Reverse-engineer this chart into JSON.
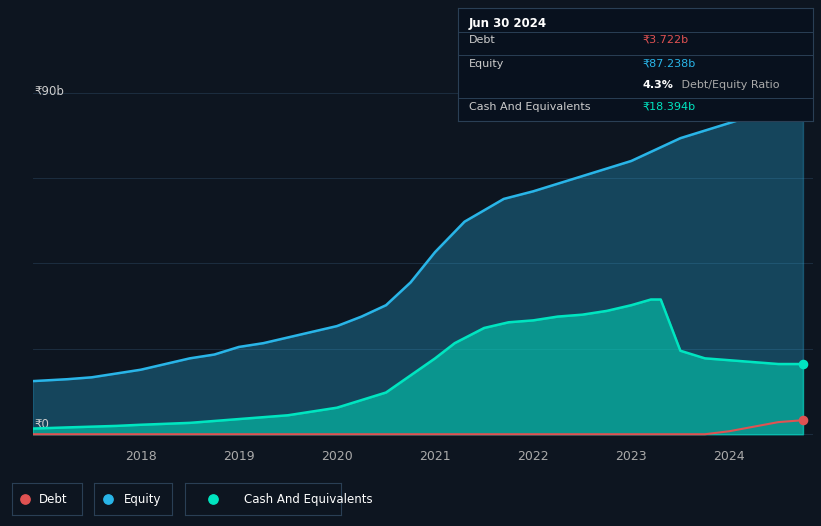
{
  "background_color": "#0d1520",
  "plot_bg_color": "#0d1520",
  "ylabel_top": "₹90b",
  "ylabel_bottom": "₹0",
  "x_ticks": [
    2018,
    2019,
    2020,
    2021,
    2022,
    2023,
    2024
  ],
  "x_range": [
    2016.9,
    2024.85
  ],
  "y_range": [
    -2,
    95
  ],
  "debt_color": "#e05252",
  "equity_color": "#29b5e8",
  "cash_color": "#00e5c0",
  "grid_color": "#1c2d3f",
  "tooltip_bg": "#08111e",
  "tooltip_border": "#2a3f55",
  "debt_label": "Debt",
  "equity_label": "Equity",
  "cash_label": "Cash And Equivalents",
  "tooltip_date": "Jun 30 2024",
  "tooltip_debt": "₹3.722b",
  "tooltip_equity": "₹87.238b",
  "tooltip_ratio_bold": "4.3%",
  "tooltip_ratio_rest": " Debt/Equity Ratio",
  "tooltip_cash": "₹18.394b",
  "equity_data_x": [
    2016.9,
    2017.25,
    2017.5,
    2017.75,
    2018.0,
    2018.25,
    2018.5,
    2018.75,
    2019.0,
    2019.25,
    2019.5,
    2019.75,
    2020.0,
    2020.25,
    2020.5,
    2020.75,
    2021.0,
    2021.15,
    2021.3,
    2021.5,
    2021.7,
    2022.0,
    2022.25,
    2022.5,
    2022.75,
    2023.0,
    2023.25,
    2023.5,
    2023.75,
    2024.0,
    2024.25,
    2024.5,
    2024.75
  ],
  "equity_data_y": [
    14,
    14.5,
    15,
    16,
    17,
    18.5,
    20,
    21,
    23,
    24,
    25.5,
    27,
    28.5,
    31,
    34,
    40,
    48,
    52,
    56,
    59,
    62,
    64,
    66,
    68,
    70,
    72,
    75,
    78,
    80,
    82,
    84,
    86,
    87.5
  ],
  "cash_data_x": [
    2016.9,
    2017.25,
    2017.5,
    2017.75,
    2018.0,
    2018.5,
    2019.0,
    2019.5,
    2020.0,
    2020.5,
    2021.0,
    2021.2,
    2021.5,
    2021.75,
    2022.0,
    2022.25,
    2022.5,
    2022.75,
    2023.0,
    2023.2,
    2023.3,
    2023.5,
    2023.75,
    2024.0,
    2024.25,
    2024.5,
    2024.75
  ],
  "cash_data_y": [
    1.5,
    1.8,
    2,
    2.2,
    2.5,
    3,
    4,
    5,
    7,
    11,
    20,
    24,
    28,
    29.5,
    30,
    31,
    31.5,
    32.5,
    34,
    35.5,
    35.5,
    22,
    20,
    19.5,
    19,
    18.5,
    18.5
  ],
  "debt_data_x": [
    2016.9,
    2017.0,
    2018.0,
    2019.0,
    2020.0,
    2021.0,
    2022.0,
    2023.0,
    2023.5,
    2023.6,
    2023.75,
    2024.0,
    2024.25,
    2024.5,
    2024.75
  ],
  "debt_data_y": [
    0,
    0,
    0,
    0,
    0,
    0,
    0,
    0,
    0,
    0,
    0,
    0.8,
    2.0,
    3.2,
    3.7
  ]
}
